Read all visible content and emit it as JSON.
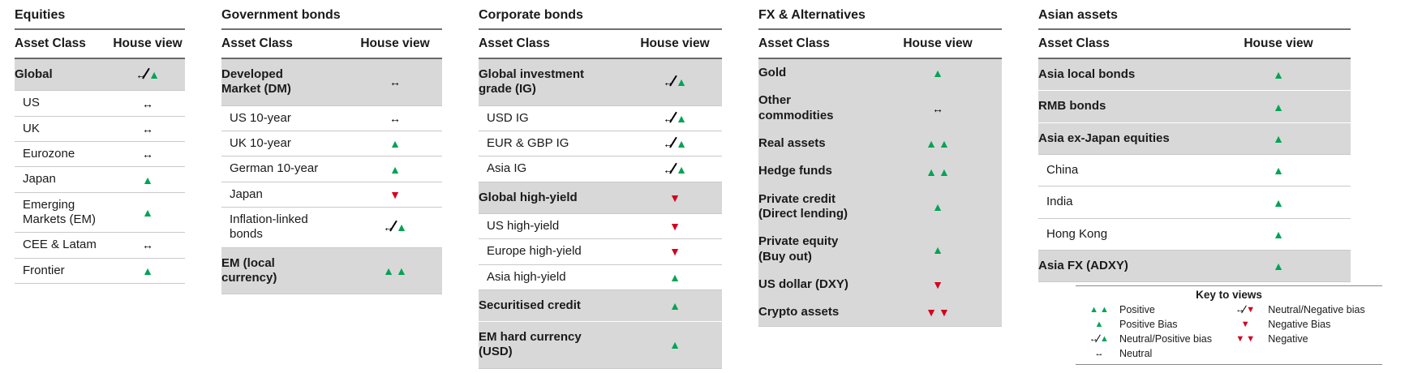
{
  "columns": {
    "asset_class": "Asset Class",
    "house_view": "House view"
  },
  "view_colors": {
    "positive_green": "#00a455",
    "negative_red": "#d2001e",
    "neutral_black": "#000000",
    "band_gray": "#d8d8d8"
  },
  "sections": [
    {
      "title": "Equities",
      "rows": [
        {
          "label": "Global",
          "view": "neutral-positive",
          "emphasis": true,
          "band": true
        },
        {
          "label": "US",
          "view": "neutral",
          "emphasis": false,
          "band": false
        },
        {
          "label": "UK",
          "view": "neutral",
          "emphasis": false,
          "band": false
        },
        {
          "label": "Eurozone",
          "view": "neutral",
          "emphasis": false,
          "band": false
        },
        {
          "label": "Japan",
          "view": "positive-bias",
          "emphasis": false,
          "band": false
        },
        {
          "label": "Emerging\nMarkets (EM)",
          "view": "positive-bias",
          "emphasis": false,
          "band": false
        },
        {
          "label": "CEE & Latam",
          "view": "neutral",
          "emphasis": false,
          "band": false
        },
        {
          "label": "Frontier",
          "view": "positive-bias",
          "emphasis": false,
          "band": false
        }
      ]
    },
    {
      "title": "Government bonds",
      "rows": [
        {
          "label": "Developed\nMarket (DM)",
          "view": "neutral",
          "emphasis": true,
          "band": true
        },
        {
          "label": "US 10-year",
          "view": "neutral",
          "emphasis": false,
          "band": false
        },
        {
          "label": "UK 10-year",
          "view": "positive-bias",
          "emphasis": false,
          "band": false
        },
        {
          "label": "German 10-year",
          "view": "positive-bias",
          "emphasis": false,
          "band": false
        },
        {
          "label": "Japan",
          "view": "negative-bias",
          "emphasis": false,
          "band": false
        },
        {
          "label": "Inflation-linked\nbonds",
          "view": "neutral-positive",
          "emphasis": false,
          "band": false
        },
        {
          "label": "EM (local\ncurrency)",
          "view": "positive",
          "emphasis": true,
          "band": true
        }
      ]
    },
    {
      "title": "Corporate bonds",
      "rows": [
        {
          "label": "Global investment\ngrade (IG)",
          "view": "neutral-positive",
          "emphasis": true,
          "band": true
        },
        {
          "label": "USD IG",
          "view": "neutral-positive",
          "emphasis": false,
          "band": false
        },
        {
          "label": "EUR & GBP IG",
          "view": "neutral-positive",
          "emphasis": false,
          "band": false
        },
        {
          "label": "Asia IG",
          "view": "neutral-positive",
          "emphasis": false,
          "band": false
        },
        {
          "label": "Global high-yield",
          "view": "negative-bias",
          "emphasis": true,
          "band": true
        },
        {
          "label": "US high-yield",
          "view": "negative-bias",
          "emphasis": false,
          "band": false
        },
        {
          "label": "Europe high-yield",
          "view": "negative-bias",
          "emphasis": false,
          "band": false
        },
        {
          "label": "Asia high-yield",
          "view": "positive-bias",
          "emphasis": false,
          "band": false
        },
        {
          "label": "Securitised credit",
          "view": "positive-bias",
          "emphasis": true,
          "band": true
        },
        {
          "label": "EM hard currency\n(USD)",
          "view": "positive-bias",
          "emphasis": true,
          "band": true
        }
      ]
    },
    {
      "title": "FX & Alternatives",
      "rows": [
        {
          "label": "Gold",
          "view": "positive-bias",
          "emphasis": true,
          "band": true
        },
        {
          "label": "Other\ncommodities",
          "view": "neutral",
          "emphasis": true,
          "band": true
        },
        {
          "label": "Real assets",
          "view": "positive",
          "emphasis": true,
          "band": true
        },
        {
          "label": "Hedge funds",
          "view": "positive",
          "emphasis": true,
          "band": true
        },
        {
          "label": "Private credit\n(Direct lending)",
          "view": "positive-bias",
          "emphasis": true,
          "band": true
        },
        {
          "label": "Private equity\n(Buy out)",
          "view": "positive-bias",
          "emphasis": true,
          "band": true
        },
        {
          "label": "US dollar (DXY)",
          "view": "negative-bias",
          "emphasis": true,
          "band": true
        },
        {
          "label": "Crypto assets",
          "view": "negative",
          "emphasis": true,
          "band": true
        }
      ]
    },
    {
      "title": "Asian assets",
      "rows": [
        {
          "label": "Asia local bonds",
          "view": "positive-bias",
          "emphasis": true,
          "band": true
        },
        {
          "label": "RMB bonds",
          "view": "positive-bias",
          "emphasis": true,
          "band": true
        },
        {
          "label": "Asia ex-Japan equities",
          "view": "positive-bias",
          "emphasis": true,
          "band": true
        },
        {
          "label": "China",
          "view": "positive-bias",
          "emphasis": false,
          "band": false
        },
        {
          "label": "India",
          "view": "positive-bias",
          "emphasis": false,
          "band": false
        },
        {
          "label": "Hong Kong",
          "view": "positive-bias",
          "emphasis": false,
          "band": false
        },
        {
          "label": "Asia FX (ADXY)",
          "view": "positive-bias",
          "emphasis": true,
          "band": true
        }
      ]
    }
  ],
  "key": {
    "title": "Key to views",
    "left": [
      {
        "view": "positive",
        "label": "Positive"
      },
      {
        "view": "positive-bias",
        "label": "Positive Bias"
      },
      {
        "view": "neutral-positive",
        "label": "Neutral/Positive bias"
      },
      {
        "view": "neutral",
        "label": "Neutral"
      }
    ],
    "right": [
      {
        "view": "neutral-negative",
        "label": "Neutral/Negative bias"
      },
      {
        "view": "negative-bias",
        "label": "Negative Bias"
      },
      {
        "view": "negative",
        "label": "Negative"
      }
    ]
  }
}
